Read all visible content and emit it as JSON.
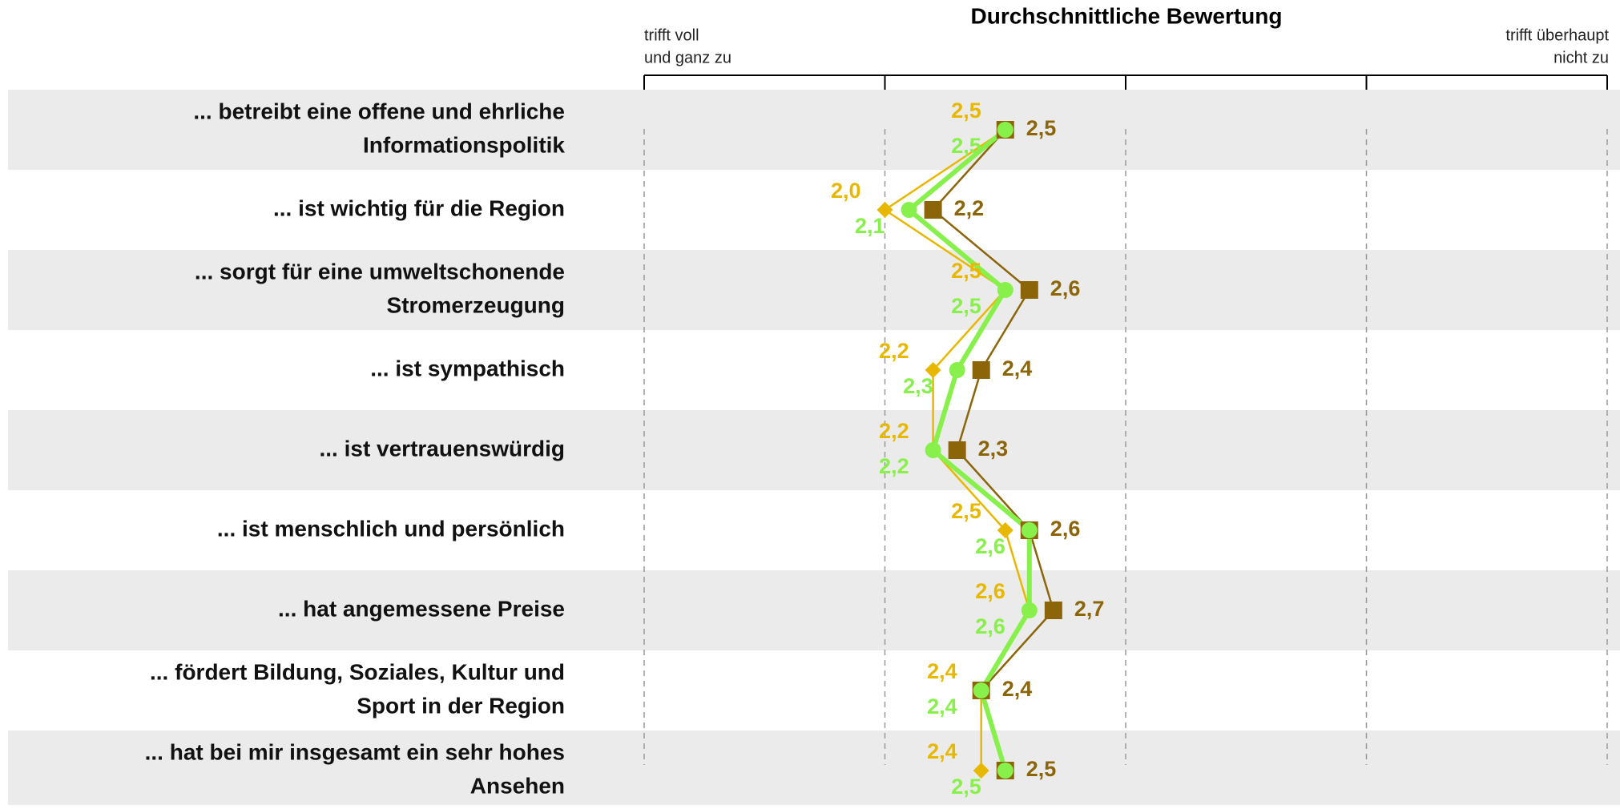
{
  "chart_data": {
    "type": "profile",
    "title": "Durchschnittliche Bewertung",
    "axis_label_left": [
      "trifft voll",
      "und ganz zu"
    ],
    "axis_label_right": [
      "trifft überhaupt",
      "nicht zu"
    ],
    "categories": [
      [
        "... betreibt eine offene und ehrliche",
        "Informationspolitik"
      ],
      [
        "... ist wichtig für die Region"
      ],
      [
        "... sorgt für eine umweltschonende",
        "Stromerzeugung"
      ],
      [
        "... ist sympathisch"
      ],
      [
        "... ist vertrauenswürdig"
      ],
      [
        "... ist menschlich und persönlich"
      ],
      [
        "... hat angemessene Preise"
      ],
      [
        "... fördert Bildung, Soziales, Kultur und",
        "Sport in der Region"
      ],
      [
        "... hat bei mir insgesamt ein sehr hohes",
        "Ansehen"
      ]
    ],
    "xlim": [
      1,
      5
    ],
    "xticks": [
      1,
      2,
      3,
      4,
      5
    ],
    "grid": true,
    "series": [
      {
        "color": "#8b6508",
        "marker": "square",
        "values": [
          2.5,
          2.2,
          2.6,
          2.4,
          2.3,
          2.6,
          2.7,
          2.4,
          2.5
        ],
        "value_labels": [
          "2,5",
          "2,2",
          "2,6",
          "2,4",
          "2,3",
          "2,6",
          "2,7",
          "2,4",
          "2,5"
        ]
      },
      {
        "color": "#e8b800",
        "marker": "diamond",
        "values": [
          2.5,
          2.0,
          2.5,
          2.2,
          2.2,
          2.5,
          2.6,
          2.4,
          2.4
        ],
        "value_labels": [
          "2,5",
          "2,0",
          "2,5",
          "2,2",
          "2,2",
          "2,5",
          "2,6",
          "2,4",
          "2,4"
        ]
      },
      {
        "color": "#88f04a",
        "marker": "circle",
        "values": [
          2.5,
          2.1,
          2.5,
          2.3,
          2.2,
          2.6,
          2.6,
          2.4,
          2.5
        ],
        "value_labels": [
          "2,5",
          "2,1",
          "2,5",
          "2,3",
          "2,2",
          "2,6",
          "2,6",
          "2,4",
          "2,5"
        ]
      }
    ]
  }
}
